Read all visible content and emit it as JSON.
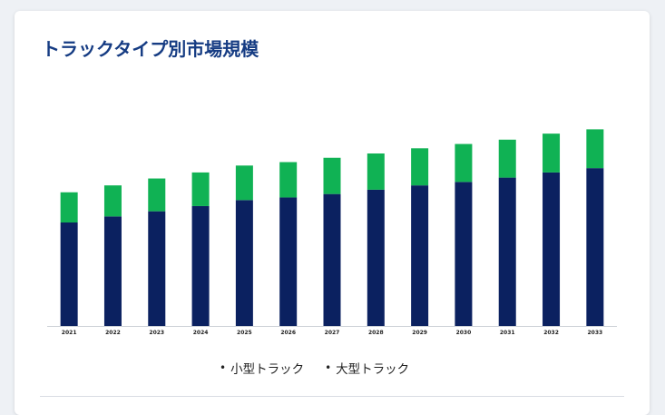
{
  "title": "トラックタイプ別市場規模",
  "colors": {
    "title": "#163c83",
    "small_truck": "#0b2160",
    "large_truck": "#10b254",
    "baseline": "#cfd3d8"
  },
  "chart_data": {
    "type": "bar",
    "stacked": true,
    "title": "",
    "xlabel": "",
    "ylabel": "",
    "categories": [
      "2021",
      "2022",
      "2023",
      "2024",
      "2025",
      "2026",
      "2027",
      "2028",
      "2029",
      "2030",
      "2031",
      "2032",
      "2033"
    ],
    "series": [
      {
        "name": "小型トラック",
        "values": [
          120,
          127,
          133,
          139,
          146,
          149,
          153,
          158,
          163,
          167,
          172,
          178,
          183
        ]
      },
      {
        "name": "大型トラック",
        "values": [
          35,
          36,
          38,
          39,
          40,
          41,
          42,
          42,
          43,
          44,
          44,
          45,
          45
        ]
      }
    ],
    "ylim": [
      0,
      240
    ],
    "axis_values_shown": false,
    "grid": false,
    "legend": "bottom"
  },
  "legend": {
    "items": [
      {
        "label": "小型トラック",
        "marker": "•"
      },
      {
        "label": "大型トラック",
        "marker": "•"
      }
    ]
  }
}
